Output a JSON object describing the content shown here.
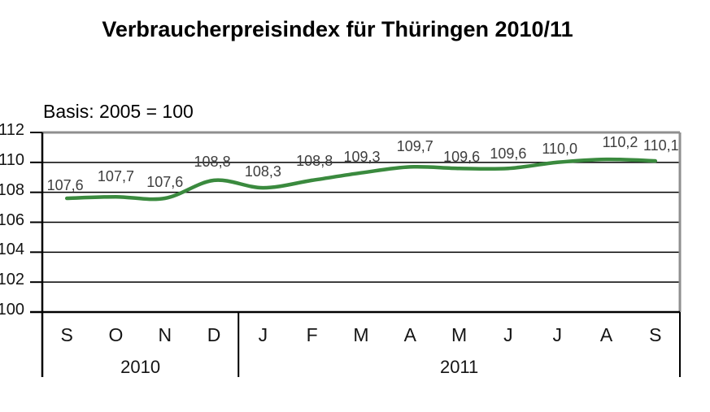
{
  "chart_data": {
    "type": "line",
    "title": "Verbraucherpreisindex für Thüringen 2010/11",
    "subtitle": "Basis: 2005 = 100",
    "categories": [
      "S",
      "O",
      "N",
      "D",
      "J",
      "F",
      "M",
      "A",
      "M",
      "J",
      "J",
      "A",
      "S"
    ],
    "year_groups": [
      {
        "label": "2010",
        "count": 4
      },
      {
        "label": "2011",
        "count": 9
      }
    ],
    "series": [
      {
        "values": [
          107.6,
          107.7,
          107.6,
          108.8,
          108.3,
          108.8,
          109.3,
          109.7,
          109.6,
          109.6,
          110.0,
          110.2,
          110.1
        ],
        "data_labels": [
          "107,6",
          "107,7",
          "107,6",
          "108,8",
          "108,3",
          "108,8",
          "109,3",
          "109,7",
          "109,6",
          "109,6",
          "110,0",
          "110,2",
          "110,1"
        ],
        "color": "#3a8a3e"
      }
    ],
    "ylim": [
      100,
      112
    ],
    "yticks": [
      100,
      102,
      104,
      106,
      108,
      110,
      112
    ],
    "xlabel": "",
    "ylabel": "",
    "grid": true,
    "legend": "none",
    "colors": {
      "gridline": "#000000",
      "axis": "#000000",
      "plot_border": "#8f8f8f",
      "data_label": "#3d3d3d",
      "background": "#ffffff"
    }
  }
}
